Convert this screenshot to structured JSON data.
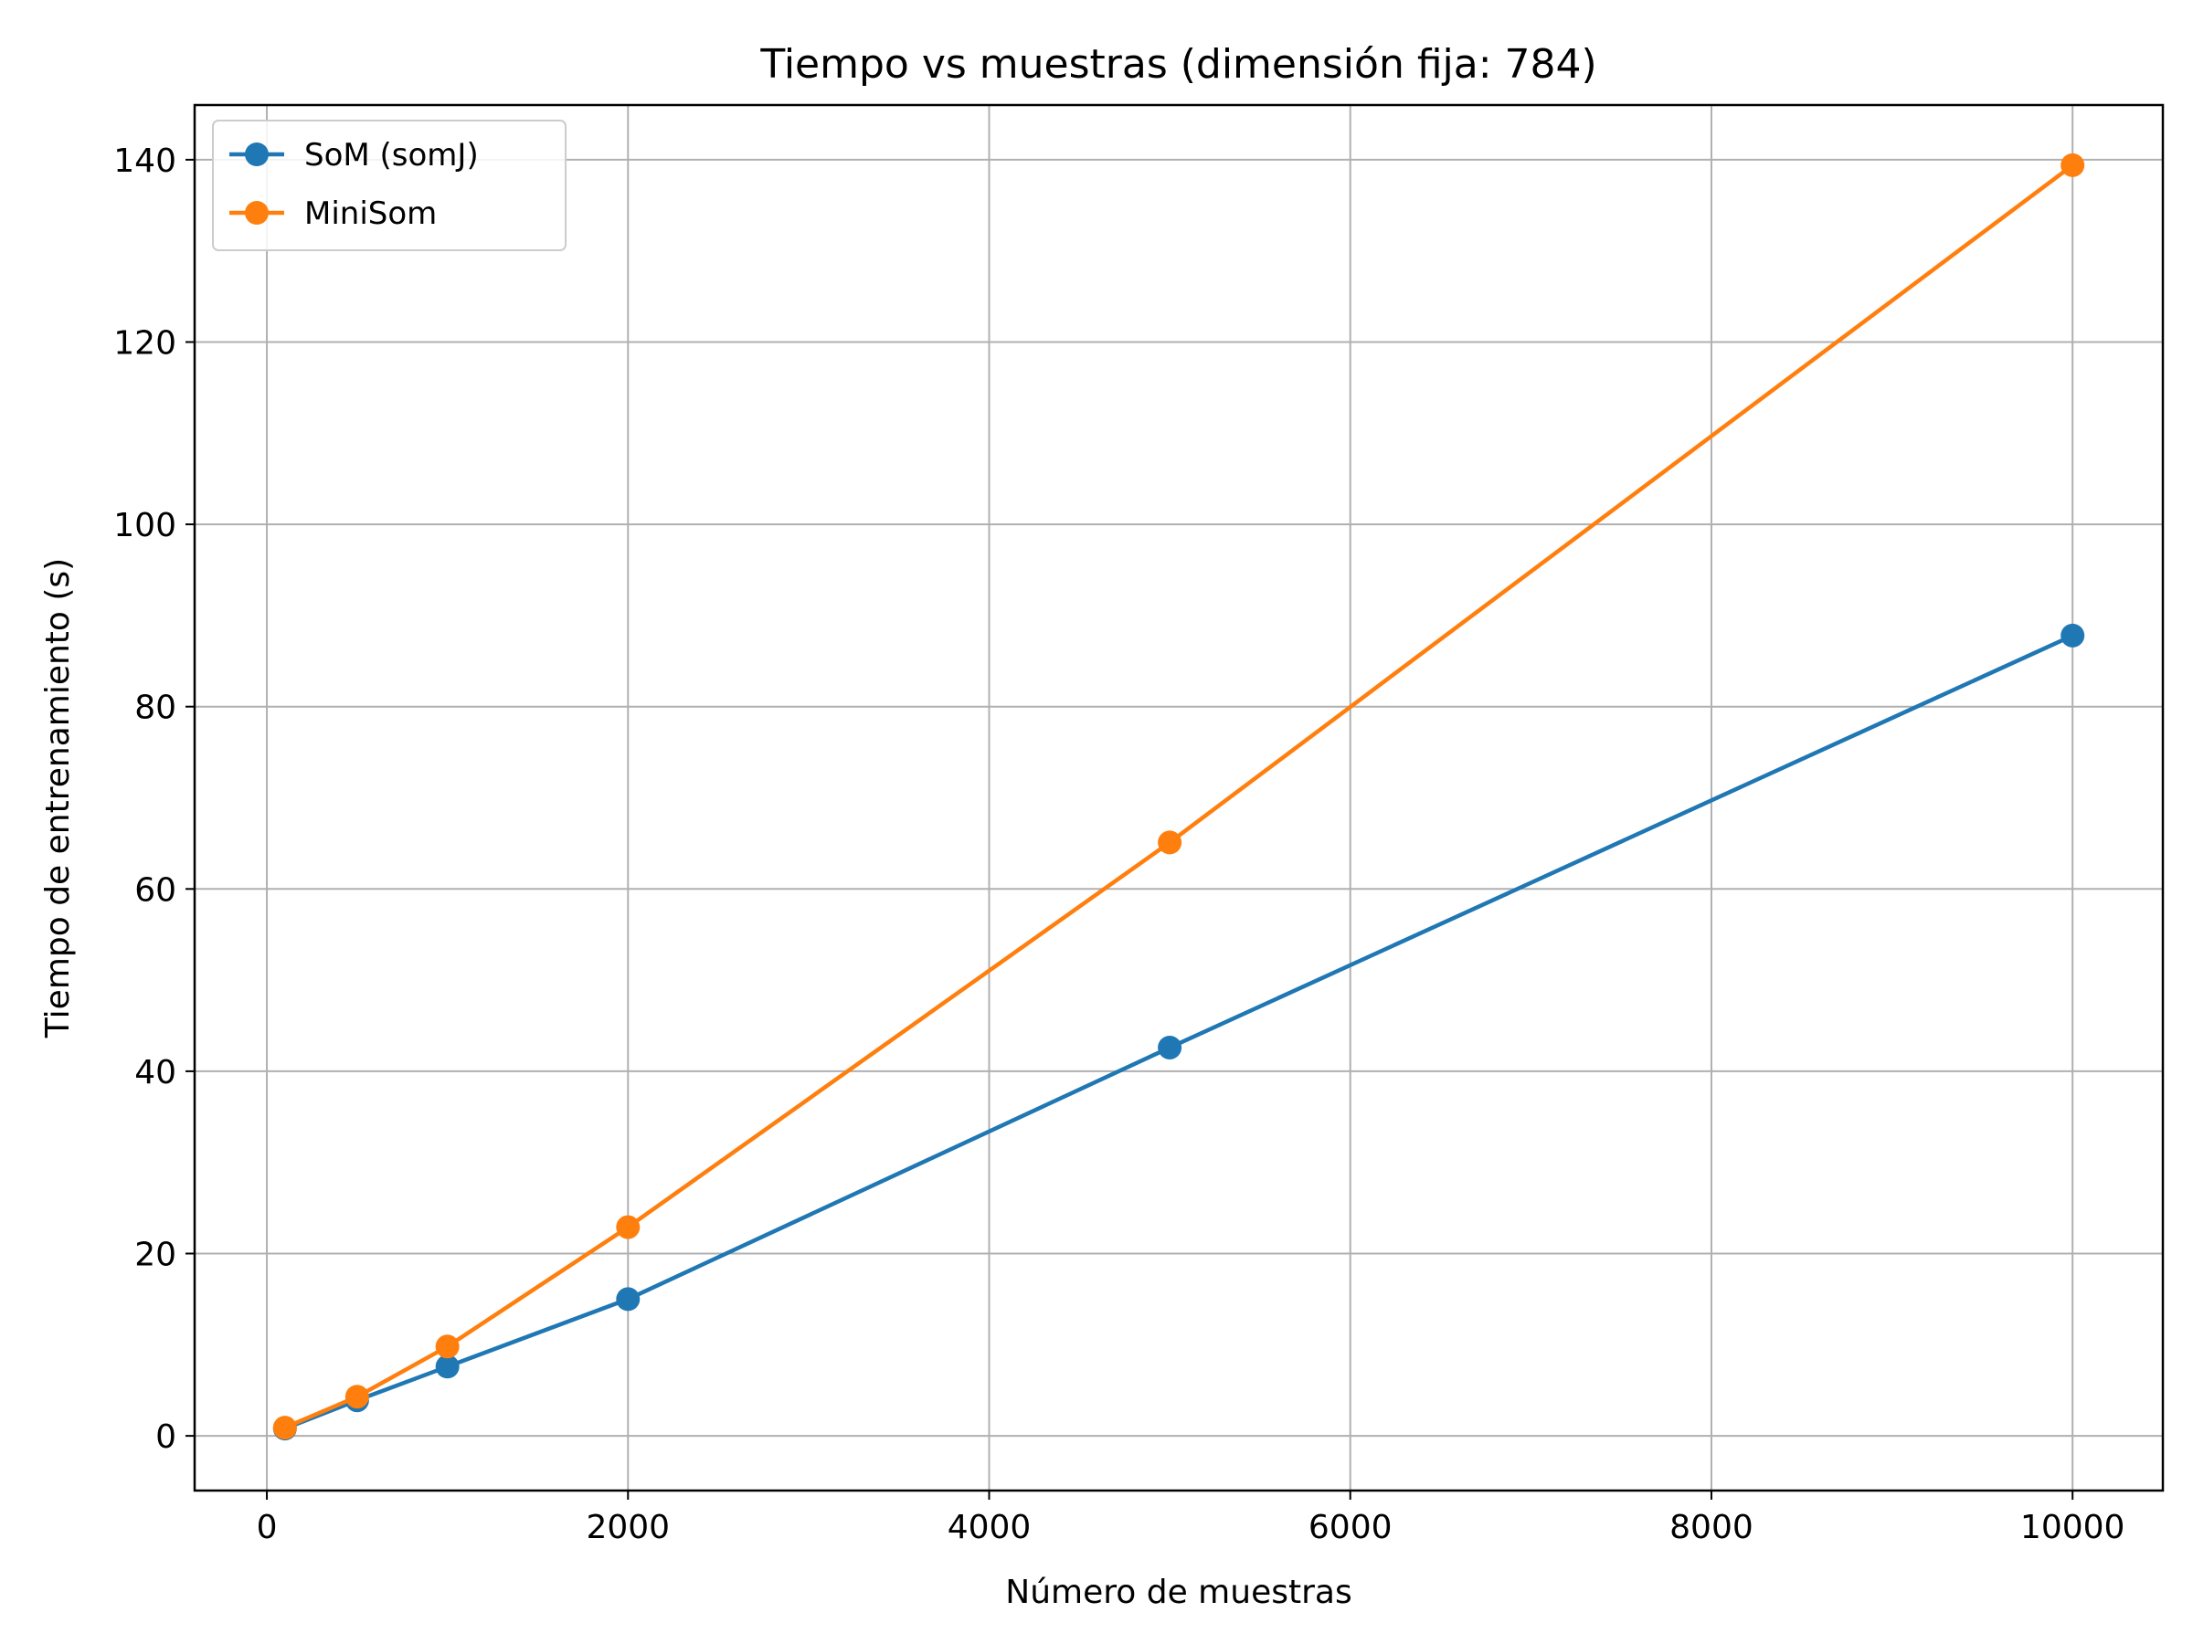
{
  "chart_data": {
    "type": "line",
    "title": "Tiempo vs muestras (dimensión fija: 784)",
    "xlabel": "Número de muestras",
    "ylabel": "Tiempo de entrenamiento (s)",
    "xlim": [
      -400,
      10500
    ],
    "ylim": [
      -6,
      146
    ],
    "xticks": [
      0,
      2000,
      4000,
      6000,
      8000,
      10000
    ],
    "yticks": [
      0,
      20,
      40,
      60,
      80,
      100,
      120,
      140
    ],
    "grid": true,
    "legend_position": "top-left",
    "x": [
      100,
      500,
      1000,
      2000,
      5000,
      10000
    ],
    "series": [
      {
        "name": "SoM (somJ)",
        "color": "#1f77b4",
        "values": [
          0.8,
          3.9,
          7.6,
          15.0,
          42.6,
          87.8
        ]
      },
      {
        "name": "MiniSom",
        "color": "#ff7f0e",
        "values": [
          0.9,
          4.3,
          9.8,
          22.9,
          65.1,
          139.4
        ]
      }
    ]
  }
}
